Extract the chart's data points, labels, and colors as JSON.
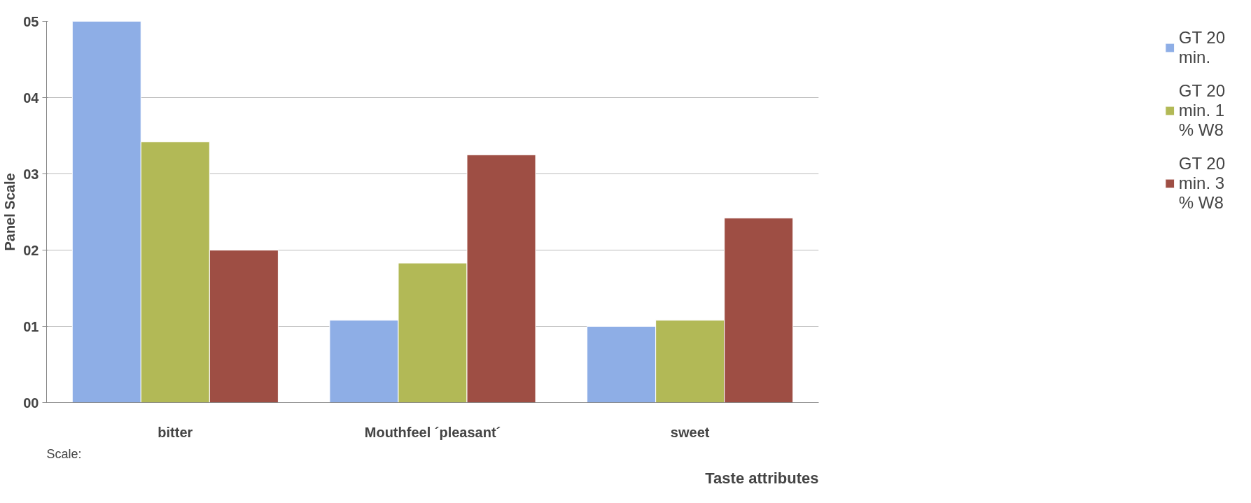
{
  "chart_data": {
    "type": "bar",
    "ylabel": "Panel Scale",
    "xlabel": "Taste attributes",
    "categories": [
      "bitter",
      "Mouthfeel ´pleasant´",
      "sweet"
    ],
    "series": [
      {
        "name": "GT 20 min.",
        "color": "#8eaee6",
        "values": [
          5.0,
          1.08,
          1.0
        ]
      },
      {
        "name": "GT 20 min. 1 % W8",
        "color": "#b2b956",
        "values": [
          3.42,
          1.83,
          1.08
        ]
      },
      {
        "name": "GT 20 min. 3 % W8",
        "color": "#9e4e44",
        "values": [
          2.0,
          3.25,
          2.42
        ]
      }
    ],
    "ylim": [
      0,
      5
    ],
    "yticks": [
      {
        "value": 0,
        "label": "00"
      },
      {
        "value": 1,
        "label": "01"
      },
      {
        "value": 2,
        "label": "02"
      },
      {
        "value": 3,
        "label": "03"
      },
      {
        "value": 4,
        "label": "04"
      },
      {
        "value": 5,
        "label": "05"
      }
    ],
    "grid": "y",
    "legend": "right",
    "annotations": [
      "Scale:"
    ]
  }
}
